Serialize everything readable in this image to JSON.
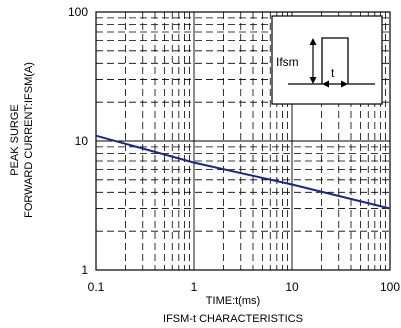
{
  "chart_data": {
    "type": "line",
    "title": "IFSM-t CHARACTERISTICS",
    "xlabel": "TIME:t(ms)",
    "ylabel_line1": "PEAK SURGE",
    "ylabel_line2": "FORWARD CURRENT:IFSM(A)",
    "x_scale": "log",
    "y_scale": "log",
    "xlim": [
      0.1,
      100
    ],
    "ylim": [
      1,
      100
    ],
    "x_ticks": [
      "0.1",
      "1",
      "10",
      "100"
    ],
    "y_ticks": [
      "1",
      "10",
      "100"
    ],
    "grid": true,
    "series": [
      {
        "x": [
          0.1,
          1,
          10,
          100
        ],
        "y": [
          11,
          6.8,
          4.6,
          3.0
        ]
      }
    ],
    "inset": {
      "label_ifsm": "Ifsm",
      "label_t": "t"
    },
    "colors": {
      "line": "#1f2a7a",
      "grid": "#000000"
    }
  }
}
